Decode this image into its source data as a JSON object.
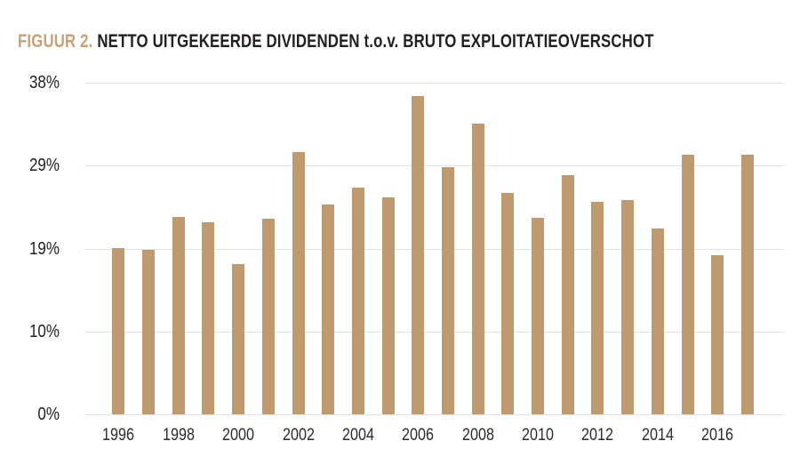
{
  "figure": {
    "label": "FIGUUR 2.",
    "title": "NETTO UITGEKEERDE DIVIDENDEN t.o.v. BRUTO EXPLOITATIEOVERSCHOT"
  },
  "colors": {
    "bar": "#BE9A6E",
    "figure_label": "#C8A176",
    "title_text": "#231F20",
    "gridline": "#E3E3E3",
    "axis_text": "#2B2B2B",
    "background": "#FFFFFF"
  },
  "chart_data": {
    "type": "bar",
    "title": "FIGUUR 2. NETTO UITGEKEERDE DIVIDENDEN t.o.v. BRUTO EXPLOITATIEOVERSCHOT",
    "categories": [
      1996,
      1997,
      1998,
      1999,
      2000,
      2001,
      2002,
      2003,
      2004,
      2005,
      2006,
      2007,
      2008,
      2009,
      2010,
      2011,
      2012,
      2013,
      2014,
      2015,
      2016,
      2017
    ],
    "values": [
      19.1,
      18.8,
      22.6,
      22.0,
      17.2,
      22.4,
      30.1,
      24.0,
      26.0,
      24.9,
      36.5,
      28.3,
      33.3,
      25.4,
      22.5,
      27.4,
      24.3,
      24.6,
      21.3,
      29.8,
      18.2,
      29.8
    ],
    "xlabel": "",
    "ylabel": "",
    "ylim": [
      0,
      38
    ],
    "y_ticks": [
      {
        "value": 0,
        "label": "0%"
      },
      {
        "value": 9.5,
        "label": "10%"
      },
      {
        "value": 19,
        "label": "19%"
      },
      {
        "value": 28.5,
        "label": "29%"
      },
      {
        "value": 38,
        "label": "38%"
      }
    ],
    "x_tick_labels": [
      "1996",
      "1998",
      "2000",
      "2002",
      "2004",
      "2006",
      "2008",
      "2010",
      "2012",
      "2014",
      "2016"
    ],
    "grid": "horizontal-only",
    "legend": "none",
    "bar_color": "#BE9A6E"
  }
}
